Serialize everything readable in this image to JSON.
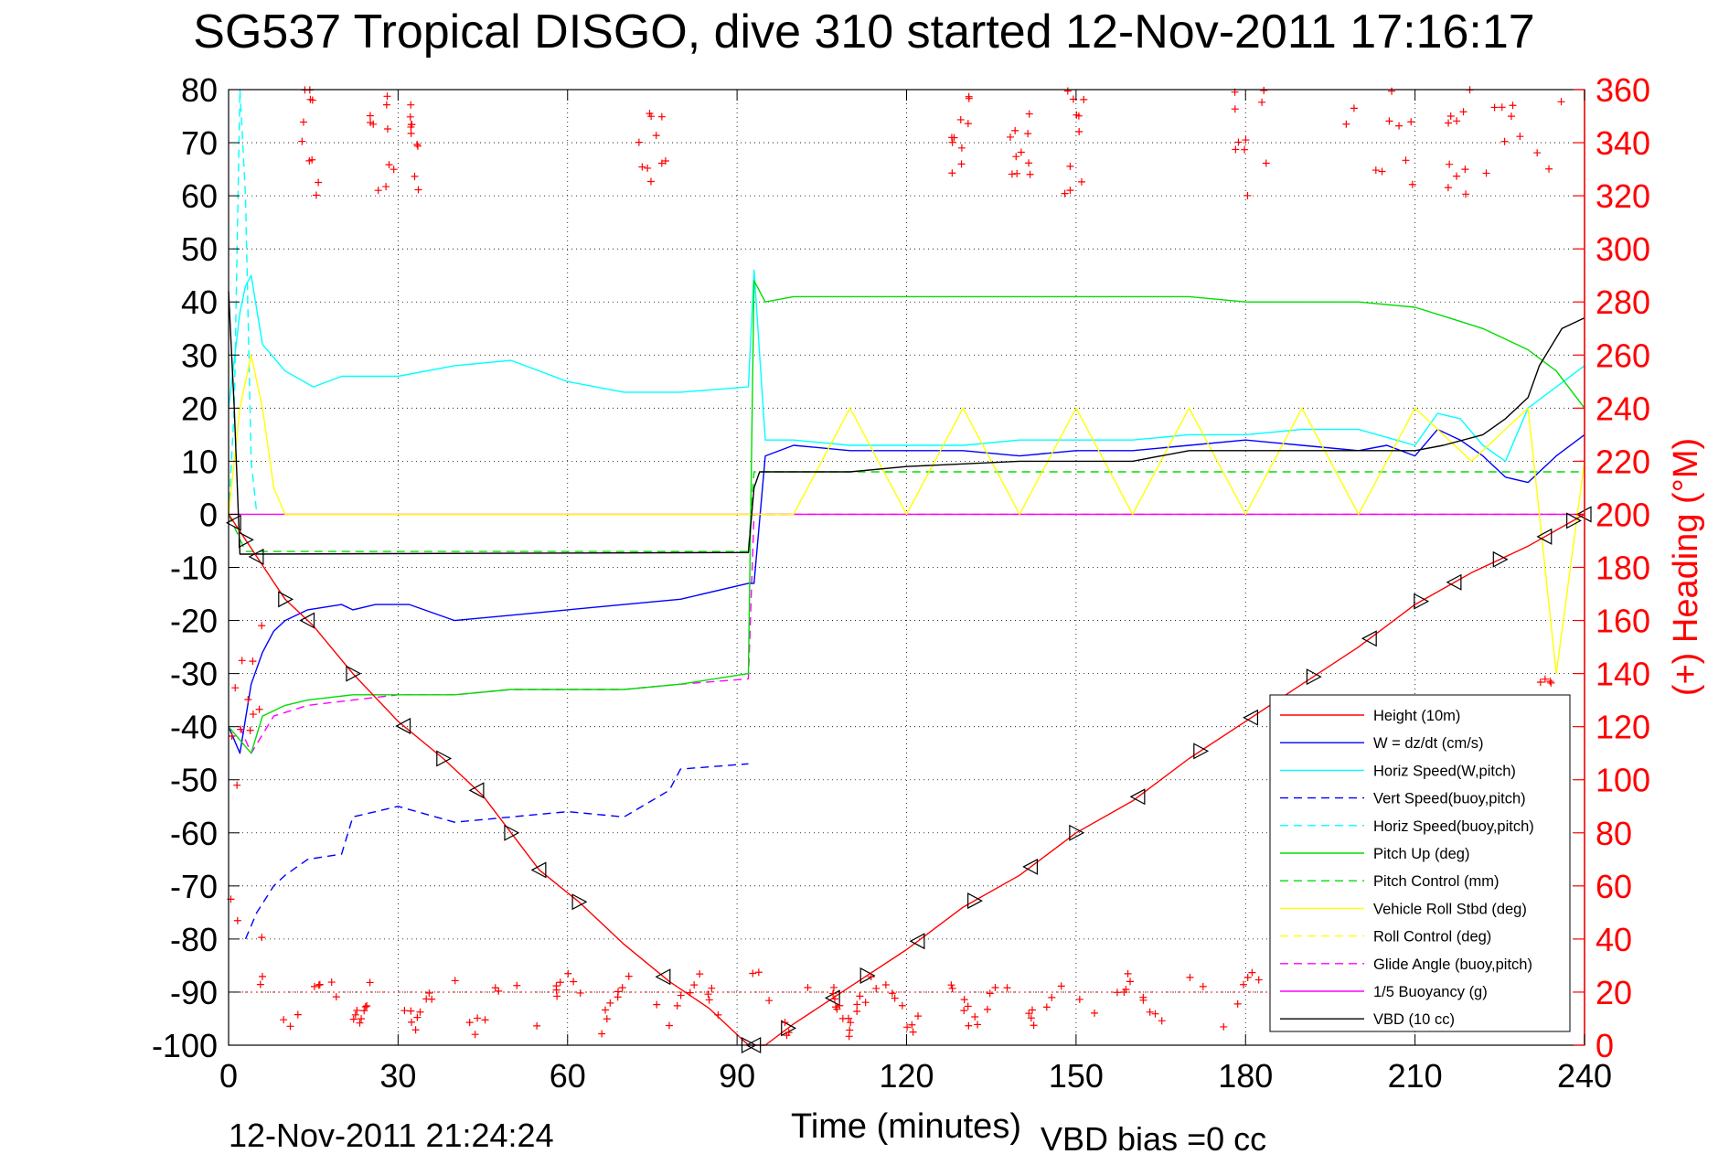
{
  "chart_data": {
    "type": "line",
    "title": "SG537 Tropical DISGO, dive 310 started 12-Nov-2011 17:16:17",
    "xlabel": "Time (minutes)",
    "ylabel": "",
    "y2label": "(+) Heading (°M)",
    "xlim": [
      0,
      240
    ],
    "ylim": [
      -100,
      80
    ],
    "y2lim": [
      0,
      360
    ],
    "x_ticks": [
      0,
      30,
      60,
      90,
      120,
      150,
      180,
      210,
      240
    ],
    "y_ticks": [
      80,
      70,
      60,
      50,
      40,
      30,
      20,
      10,
      0,
      -10,
      -20,
      -30,
      -40,
      -50,
      -60,
      -70,
      -80,
      -90,
      -100
    ],
    "y2_ticks": [
      360,
      340,
      320,
      300,
      280,
      260,
      240,
      220,
      200,
      180,
      160,
      140,
      120,
      100,
      80,
      60,
      40,
      20,
      0
    ],
    "grid": true,
    "legend_position": "bottom-right",
    "footer_time": "12-Nov-2011 21:24:24",
    "footer_bias": "VBD bias =0 cc",
    "colors": {
      "red": "#ff0000",
      "blue": "#0000ff",
      "cyan": "#00ffff",
      "green": "#00dd00",
      "yellow": "#ffff00",
      "magenta": "#ff00ff",
      "black": "#000000"
    },
    "series": [
      {
        "name": "Height (10m)",
        "color": "#ff0000",
        "style": "solid",
        "x": [
          0,
          5,
          10,
          15,
          22,
          30,
          38,
          45,
          50,
          55,
          62,
          70,
          78,
          85,
          92,
          95,
          100,
          110,
          120,
          130,
          140,
          150,
          160,
          170,
          180,
          190,
          200,
          210,
          220,
          230,
          240
        ],
        "y": [
          0,
          -8,
          -16,
          -21,
          -30,
          -39,
          -46,
          -53,
          -60,
          -67,
          -73,
          -81,
          -88,
          -93,
          -100,
          -100,
          -96,
          -89,
          -82,
          -74,
          -68,
          -60,
          -54,
          -46,
          -39,
          -32,
          -25,
          -17,
          -11,
          -6,
          0
        ]
      },
      {
        "name": "W = dz/dt (cm/s)",
        "color": "#0000ff",
        "style": "solid",
        "x": [
          0,
          2,
          4,
          6,
          8,
          10,
          14,
          20,
          22,
          26,
          32,
          40,
          50,
          60,
          70,
          80,
          92,
          93,
          95,
          100,
          110,
          120,
          130,
          140,
          150,
          160,
          170,
          180,
          190,
          200,
          205,
          210,
          214,
          218,
          222,
          226,
          230,
          235,
          240
        ],
        "y": [
          -40,
          -45,
          -32,
          -26,
          -22,
          -20,
          -18,
          -17,
          -18,
          -17,
          -17,
          -20,
          -19,
          -18,
          -17,
          -16,
          -13,
          -13,
          11,
          13,
          12,
          12,
          12,
          11,
          12,
          12,
          13,
          14,
          13,
          12,
          13,
          11,
          16,
          14,
          11,
          7,
          6,
          11,
          15
        ]
      },
      {
        "name": "Horiz Speed(W,pitch)",
        "color": "#00ffff",
        "style": "solid",
        "x": [
          0,
          2,
          3,
          4,
          6,
          10,
          15,
          20,
          30,
          40,
          50,
          60,
          70,
          80,
          92,
          93,
          95,
          100,
          110,
          120,
          130,
          140,
          150,
          160,
          170,
          180,
          190,
          200,
          210,
          214,
          218,
          222,
          226,
          230,
          235,
          240
        ],
        "y": [
          20,
          38,
          43,
          45,
          32,
          27,
          24,
          26,
          26,
          28,
          29,
          25,
          23,
          23,
          24,
          46,
          14,
          14,
          13,
          13,
          13,
          14,
          14,
          14,
          15,
          15,
          16,
          16,
          13,
          19,
          18,
          13,
          10,
          20,
          24,
          28
        ]
      },
      {
        "name": "Vert Speed(buoy,pitch)",
        "color": "#0000ff",
        "style": "dashed",
        "x": [
          3,
          5,
          8,
          10,
          14,
          20,
          22,
          30,
          40,
          50,
          60,
          70,
          78,
          80,
          92
        ],
        "y": [
          -80,
          -75,
          -70,
          -68,
          -65,
          -64,
          -57,
          -55,
          -58,
          -57,
          -56,
          -57,
          -52,
          -48,
          -47
        ]
      },
      {
        "name": "Horiz Speed(buoy,pitch)",
        "color": "#00ffff",
        "style": "dashed",
        "x": [
          0,
          1,
          2,
          3,
          4,
          5
        ],
        "y": [
          0,
          20,
          80,
          60,
          10,
          0
        ]
      },
      {
        "name": "Pitch Up (deg)",
        "color": "#00dd00",
        "style": "solid",
        "x": [
          0,
          4,
          6,
          10,
          14,
          22,
          30,
          40,
          50,
          60,
          70,
          80,
          92,
          93,
          95,
          100,
          110,
          120,
          130,
          140,
          150,
          160,
          170,
          180,
          190,
          200,
          210,
          216,
          222,
          226,
          230,
          235,
          240
        ],
        "y": [
          -40,
          -45,
          -38,
          -36,
          -35,
          -34,
          -34,
          -34,
          -33,
          -33,
          -33,
          -32,
          -30,
          44,
          40,
          41,
          41,
          41,
          41,
          41,
          41,
          41,
          41,
          40,
          40,
          40,
          39,
          37,
          35,
          33,
          31,
          27,
          20
        ]
      },
      {
        "name": "Pitch Control (mm)",
        "color": "#00dd00",
        "style": "dashed",
        "x": [
          0,
          3,
          92,
          93,
          240
        ],
        "y": [
          0,
          -7,
          -7,
          8,
          8
        ]
      },
      {
        "name": "Vehicle Roll Stbd (deg)",
        "color": "#ffff00",
        "style": "solid",
        "x": [
          0,
          2,
          4,
          6,
          8,
          10,
          12,
          14,
          20,
          30,
          40,
          50,
          60,
          70,
          80,
          90,
          92,
          93,
          100,
          110,
          120,
          130,
          140,
          150,
          160,
          170,
          180,
          190,
          200,
          210,
          220,
          230,
          235,
          240
        ],
        "y": [
          0,
          20,
          30,
          20,
          5,
          0,
          0,
          0,
          0,
          0,
          0,
          0,
          0,
          0,
          0,
          0,
          0,
          0,
          0,
          20,
          0,
          20,
          0,
          20,
          0,
          20,
          0,
          20,
          0,
          20,
          10,
          20,
          -30,
          10
        ]
      },
      {
        "name": "Roll Control (deg)",
        "color": "#ffff00",
        "style": "dashed",
        "x": [
          0,
          240
        ],
        "y": [
          0,
          0
        ]
      },
      {
        "name": "Glide Angle (buoy,pitch)",
        "color": "#ff00ff",
        "style": "dashed",
        "x": [
          2,
          4,
          8,
          14,
          22,
          30,
          40,
          50,
          60,
          70,
          80,
          92,
          93,
          240
        ],
        "y": [
          -40,
          -45,
          -38,
          -36,
          -35,
          -34,
          -34,
          -33,
          -33,
          -33,
          -32,
          -31,
          0,
          0
        ]
      },
      {
        "name": "1/5 Buoyancy (g)",
        "color": "#ff00ff",
        "style": "solid",
        "x": [
          0,
          240
        ],
        "y": [
          0,
          0
        ]
      },
      {
        "name": "VBD (10 cc)",
        "color": "#000000",
        "style": "solid",
        "x": [
          0,
          1,
          2,
          92,
          93,
          94,
          110,
          120,
          140,
          160,
          165,
          170,
          180,
          200,
          210,
          215,
          222,
          226,
          230,
          232,
          236,
          240
        ],
        "y": [
          42,
          20,
          -7.5,
          -7.2,
          5,
          8,
          8,
          9,
          10,
          10,
          11,
          12,
          12,
          12,
          12,
          13,
          15,
          18,
          22,
          28,
          35,
          37
        ]
      }
    ]
  }
}
